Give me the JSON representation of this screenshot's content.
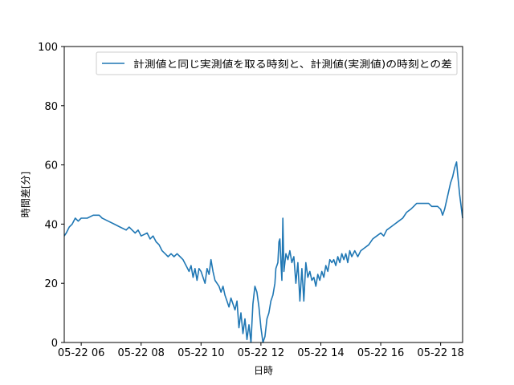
{
  "chart_data": {
    "type": "line",
    "title": "",
    "xlabel": "日時",
    "ylabel": "時間差[分]",
    "ylim": [
      0,
      100
    ],
    "xlim": [
      "2023-05-22 05:26",
      "2023-05-22 18:44"
    ],
    "x_ticks": [
      {
        "value": "2023-05-22 06:00",
        "label": "05-22 06"
      },
      {
        "value": "2023-05-22 08:00",
        "label": "05-22 08"
      },
      {
        "value": "2023-05-22 10:00",
        "label": "05-22 10"
      },
      {
        "value": "2023-05-22 12:00",
        "label": "05-22 12"
      },
      {
        "value": "2023-05-22 14:00",
        "label": "05-22 14"
      },
      {
        "value": "2023-05-22 16:00",
        "label": "05-22 16"
      },
      {
        "value": "2023-05-22 18:00",
        "label": "05-22 18"
      }
    ],
    "y_ticks": [
      0,
      20,
      40,
      60,
      80,
      100
    ],
    "grid": false,
    "legend_position": "top-right",
    "colors": {
      "series": "#1f77b4"
    },
    "series": [
      {
        "name": "計測値と同じ実測値を取る時刻と、計測値(実測値)の時刻との差",
        "points": [
          [
            "05:26",
            36
          ],
          [
            "05:30",
            37
          ],
          [
            "05:36",
            39
          ],
          [
            "05:42",
            40
          ],
          [
            "05:48",
            42
          ],
          [
            "05:54",
            41
          ],
          [
            "06:00",
            42
          ],
          [
            "06:12",
            42
          ],
          [
            "06:24",
            43
          ],
          [
            "06:36",
            43
          ],
          [
            "06:42",
            42
          ],
          [
            "06:54",
            41
          ],
          [
            "07:06",
            40
          ],
          [
            "07:18",
            39
          ],
          [
            "07:30",
            38
          ],
          [
            "07:36",
            39
          ],
          [
            "07:42",
            38
          ],
          [
            "07:48",
            37
          ],
          [
            "07:54",
            38
          ],
          [
            "08:00",
            36
          ],
          [
            "08:12",
            37
          ],
          [
            "08:18",
            35
          ],
          [
            "08:24",
            36
          ],
          [
            "08:30",
            34
          ],
          [
            "08:36",
            33
          ],
          [
            "08:42",
            31
          ],
          [
            "08:48",
            30
          ],
          [
            "08:54",
            29
          ],
          [
            "09:00",
            30
          ],
          [
            "09:06",
            29
          ],
          [
            "09:12",
            30
          ],
          [
            "09:18",
            29
          ],
          [
            "09:24",
            28
          ],
          [
            "09:30",
            26
          ],
          [
            "09:36",
            24
          ],
          [
            "09:40",
            26
          ],
          [
            "09:44",
            22
          ],
          [
            "09:48",
            25
          ],
          [
            "09:52",
            21
          ],
          [
            "09:56",
            25
          ],
          [
            "10:00",
            24
          ],
          [
            "10:04",
            22
          ],
          [
            "10:08",
            20
          ],
          [
            "10:12",
            25
          ],
          [
            "10:16",
            23
          ],
          [
            "10:20",
            28
          ],
          [
            "10:24",
            24
          ],
          [
            "10:28",
            21
          ],
          [
            "10:32",
            20
          ],
          [
            "10:36",
            19
          ],
          [
            "10:40",
            17
          ],
          [
            "10:44",
            19
          ],
          [
            "10:48",
            16
          ],
          [
            "10:52",
            14
          ],
          [
            "10:56",
            12
          ],
          [
            "11:00",
            15
          ],
          [
            "11:04",
            13
          ],
          [
            "11:08",
            11
          ],
          [
            "11:12",
            14
          ],
          [
            "11:16",
            5
          ],
          [
            "11:20",
            10
          ],
          [
            "11:24",
            3
          ],
          [
            "11:28",
            8
          ],
          [
            "11:32",
            1
          ],
          [
            "11:36",
            6
          ],
          [
            "11:40",
            0
          ],
          [
            "11:44",
            13
          ],
          [
            "11:48",
            19
          ],
          [
            "11:52",
            17
          ],
          [
            "11:56",
            12
          ],
          [
            "12:00",
            5
          ],
          [
            "12:04",
            0
          ],
          [
            "12:08",
            2
          ],
          [
            "12:12",
            8
          ],
          [
            "12:16",
            10
          ],
          [
            "12:20",
            14
          ],
          [
            "12:24",
            16
          ],
          [
            "12:28",
            20
          ],
          [
            "12:30",
            25
          ],
          [
            "12:34",
            27
          ],
          [
            "12:36",
            34
          ],
          [
            "12:38",
            35
          ],
          [
            "12:40",
            27
          ],
          [
            "12:42",
            21
          ],
          [
            "12:44",
            42
          ],
          [
            "12:46",
            24
          ],
          [
            "12:50",
            30
          ],
          [
            "12:54",
            28
          ],
          [
            "12:58",
            31
          ],
          [
            "13:02",
            27
          ],
          [
            "13:06",
            29
          ],
          [
            "13:10",
            20
          ],
          [
            "13:14",
            27
          ],
          [
            "13:18",
            14
          ],
          [
            "13:22",
            25
          ],
          [
            "13:26",
            14
          ],
          [
            "13:30",
            27
          ],
          [
            "13:34",
            22
          ],
          [
            "13:38",
            24
          ],
          [
            "13:42",
            21
          ],
          [
            "13:46",
            22
          ],
          [
            "13:50",
            19
          ],
          [
            "13:54",
            23
          ],
          [
            "13:58",
            21
          ],
          [
            "14:02",
            24
          ],
          [
            "14:06",
            22
          ],
          [
            "14:10",
            26
          ],
          [
            "14:14",
            24
          ],
          [
            "14:18",
            28
          ],
          [
            "14:22",
            27
          ],
          [
            "14:26",
            28
          ],
          [
            "14:30",
            26
          ],
          [
            "14:34",
            29
          ],
          [
            "14:38",
            27
          ],
          [
            "14:42",
            30
          ],
          [
            "14:46",
            28
          ],
          [
            "14:50",
            30
          ],
          [
            "14:54",
            27
          ],
          [
            "14:58",
            31
          ],
          [
            "15:02",
            29
          ],
          [
            "15:08",
            31
          ],
          [
            "15:14",
            29
          ],
          [
            "15:20",
            31
          ],
          [
            "15:28",
            32
          ],
          [
            "15:36",
            33
          ],
          [
            "15:44",
            35
          ],
          [
            "15:52",
            36
          ],
          [
            "16:00",
            37
          ],
          [
            "16:06",
            36
          ],
          [
            "16:12",
            38
          ],
          [
            "16:20",
            39
          ],
          [
            "16:28",
            40
          ],
          [
            "16:36",
            41
          ],
          [
            "16:44",
            42
          ],
          [
            "16:52",
            44
          ],
          [
            "17:00",
            45
          ],
          [
            "17:06",
            46
          ],
          [
            "17:12",
            47
          ],
          [
            "17:24",
            47
          ],
          [
            "17:36",
            47
          ],
          [
            "17:42",
            46
          ],
          [
            "17:54",
            46
          ],
          [
            "18:00",
            45
          ],
          [
            "18:04",
            43
          ],
          [
            "18:08",
            45
          ],
          [
            "18:12",
            48
          ],
          [
            "18:16",
            51
          ],
          [
            "18:20",
            54
          ],
          [
            "18:24",
            56
          ],
          [
            "18:28",
            59
          ],
          [
            "18:32",
            61
          ],
          [
            "18:34",
            57
          ],
          [
            "18:38",
            50
          ],
          [
            "18:44",
            42
          ]
        ]
      }
    ]
  }
}
